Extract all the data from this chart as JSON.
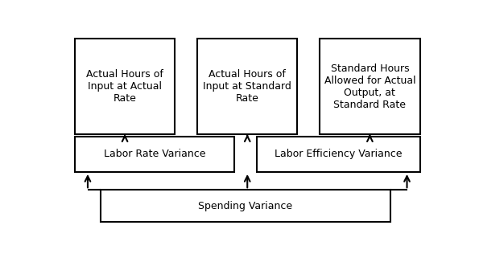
{
  "bg_color": "#ffffff",
  "line_color": "#000000",
  "text_color": "#000000",
  "font_size": 9,
  "figsize": [
    5.95,
    3.21
  ],
  "dpi": 100,
  "top_boxes": [
    {
      "label": "Actual Hours of\nInput at Actual\nRate"
    },
    {
      "label": "Actual Hours of\nInput at Standard\nRate"
    },
    {
      "label": "Standard Hours\nAllowed for Actual\nOutput, at\nStandard Rate"
    }
  ],
  "mid_boxes": [
    {
      "label": "Labor Rate Variance"
    },
    {
      "label": "Labor Efficiency Variance"
    }
  ],
  "bottom_box": {
    "label": "Spending Variance"
  }
}
